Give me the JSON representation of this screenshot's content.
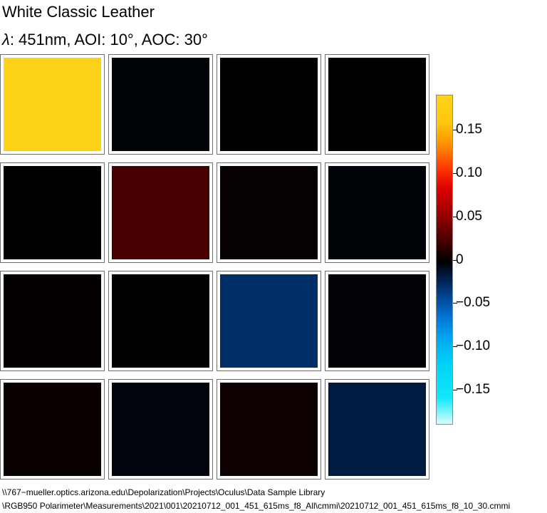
{
  "title": "White Classic Leather",
  "subtitle_symbol": "λ",
  "subtitle": ": 451nm, AOI: 10°, AOC: 30°",
  "file_path": {
    "line1": "\\\\767−mueller.optics.arizona.edu\\Depolarization\\Projects\\Oculus\\Data Sample Library",
    "line2": "\\RGB950 Polarimeter\\Measurements\\2021\\001\\20210712_001_451_615ms_f8_All\\cmmi\\20210712_001_451_615ms_f8_10_30.cmmi"
  },
  "chart_data": {
    "type": "heatmap",
    "rows": 4,
    "cols": 4,
    "cell_values": [
      [
        0.19,
        -0.005,
        -0.002,
        -0.002
      ],
      [
        0.002,
        0.045,
        0.004,
        -0.004
      ],
      [
        0.003,
        0.002,
        -0.055,
        -0.003
      ],
      [
        0.006,
        -0.008,
        0.008,
        -0.04
      ]
    ],
    "colorbar": {
      "range": [
        -0.19,
        0.19
      ],
      "ticks": [
        0.15,
        0.1,
        0.05,
        0,
        -0.05,
        -0.1,
        -0.15
      ],
      "tick_labels": [
        "0.15",
        "0.10",
        "0.05",
        "0",
        "−0.05",
        "−0.10",
        "−0.15"
      ],
      "colormap": [
        "#d8fcfc",
        "#00d4f8",
        "#0078d8",
        "#002050",
        "#000000",
        "#4a0000",
        "#e00000",
        "#ff9a00",
        "#ffd21a"
      ]
    }
  }
}
